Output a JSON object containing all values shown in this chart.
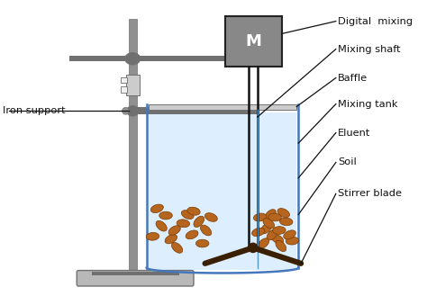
{
  "background_color": "#ffffff",
  "labels": {
    "digital_mixing": "Digital  mixing",
    "mixing_shaft": "Mixing shaft",
    "iron_support": "Iron support",
    "baffle": "Baffle",
    "mixing_tank": "Mixing tank",
    "eluent": "Eluent",
    "soil": "Soil",
    "stirrer_blade": "Stirrer blade"
  },
  "colors": {
    "gray_dark": "#707070",
    "gray_medium": "#909090",
    "gray_light": "#b8b8b8",
    "gray_lighter": "#d0d0d0",
    "gray_clamp": "#cccccc",
    "tank_outline": "#4477bb",
    "water_blue": "#ddeeff",
    "soil_brown": "#b5651d",
    "soil_edge": "#7a3b00",
    "motor_gray": "#888888",
    "motor_edge": "#222222",
    "line_color": "#111111",
    "shaft_color": "#111111",
    "blade_color": "#3a2000",
    "baffle_color": "#cccccc",
    "stand_color": "#909090",
    "base_color": "#aaaaaa"
  }
}
